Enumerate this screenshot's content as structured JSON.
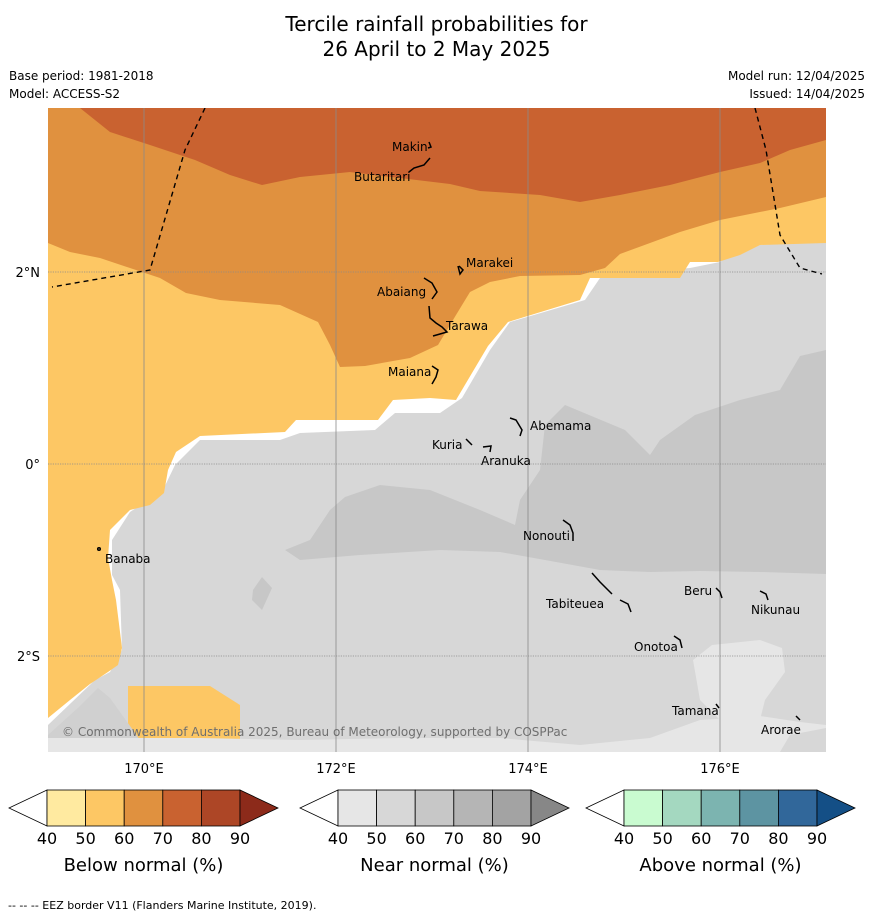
{
  "header": {
    "title_line1": "Tercile rainfall probabilities for",
    "title_line2": "26 April to 2 May 2025",
    "base_period": "Base period: 1981-2018",
    "model": "Model: ACCESS-S2",
    "model_run": "Model run: 12/04/2025",
    "issued": "Issued: 14/04/2025"
  },
  "map": {
    "lat_labels": [
      "2°N",
      "0°",
      "2°S"
    ],
    "lon_labels": [
      "170°E",
      "172°E",
      "174°E",
      "176°E"
    ],
    "places": [
      "Makin",
      "Butaritari",
      "Marakei",
      "Abaiang",
      "Tarawa",
      "Maiana",
      "Abemama",
      "Kuria",
      "Aranuka",
      "Banaba",
      "Nonouti",
      "Tabiteuea",
      "Beru",
      "Nikunau",
      "Onotoa",
      "Tamana",
      "Arorae"
    ],
    "copyright": "© Commonwealth of Australia 2025, Bureau of Meteorology, supported by COSPPac"
  },
  "legends": [
    {
      "label": "Below normal (%)",
      "ticks": [
        "40",
        "50",
        "60",
        "70",
        "80",
        "90"
      ],
      "colors": [
        "#ffffff",
        "#ffeaa0",
        "#fdc764",
        "#e0913f",
        "#c96230",
        "#ad4626",
        "#8c2a1a"
      ]
    },
    {
      "label": "Near normal (%)",
      "ticks": [
        "40",
        "50",
        "60",
        "70",
        "80",
        "90"
      ],
      "colors": [
        "#ffffff",
        "#e6e6e6",
        "#d7d7d7",
        "#c7c7c7",
        "#b5b5b5",
        "#a3a3a3",
        "#878787"
      ]
    },
    {
      "label": "Above normal (%)",
      "ticks": [
        "40",
        "50",
        "60",
        "70",
        "80",
        "90"
      ],
      "colors": [
        "#ffffff",
        "#c9fbd0",
        "#a4d8c0",
        "#7cb4b0",
        "#5d94a2",
        "#31679a",
        "#144f86"
      ]
    }
  ],
  "footnote": "-- -- -- EEZ border V11 (Flanders Marine Institute, 2019)."
}
